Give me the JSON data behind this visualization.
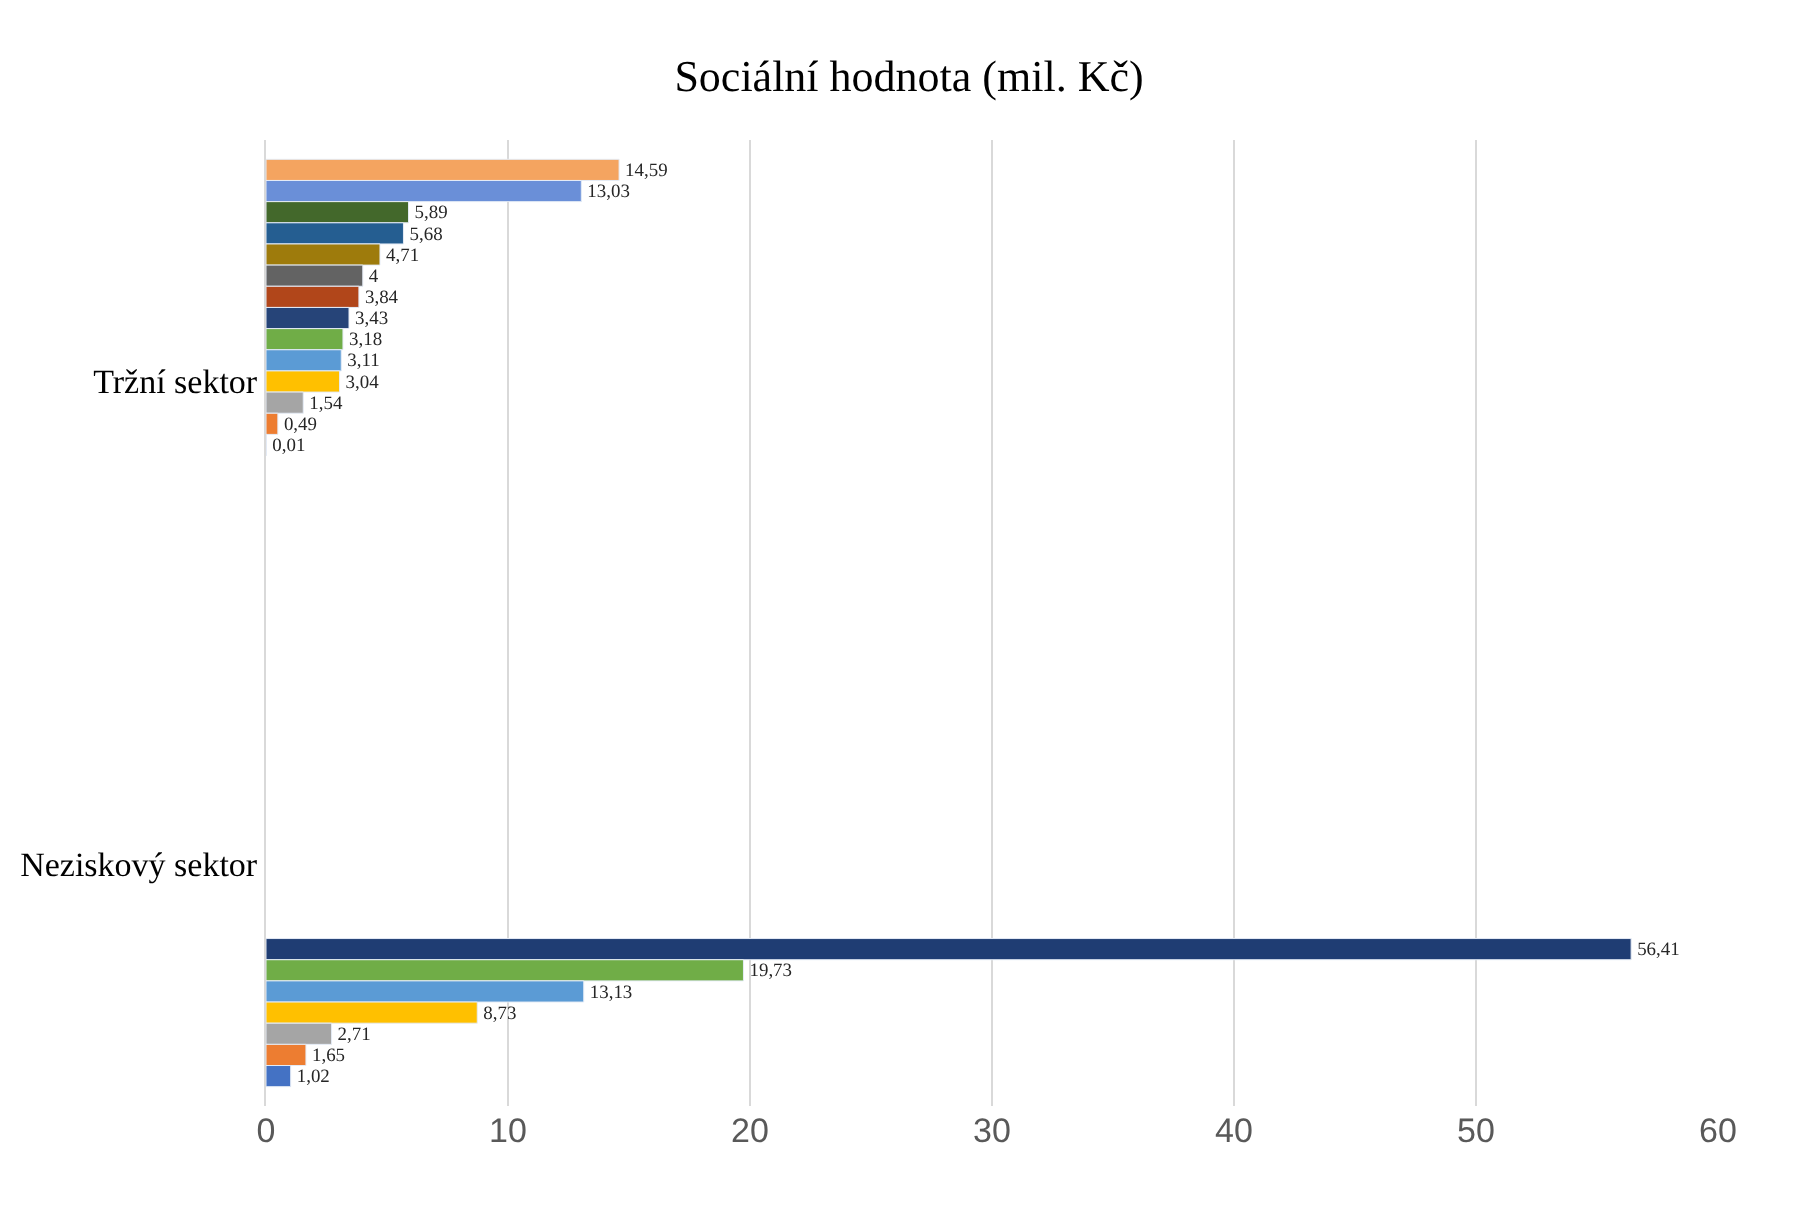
{
  "chart_data": {
    "type": "bar",
    "orientation": "horizontal",
    "title": "Sociální hodnota (mil. Kč)",
    "categories": [
      "Tržní sektor",
      "Neziskový sektor"
    ],
    "series": [
      {
        "color": "#f4a460",
        "values": [
          14.59,
          null
        ],
        "value_labels": [
          "14,59",
          null
        ]
      },
      {
        "color": "#6a8fd8",
        "values": [
          13.03,
          null
        ],
        "value_labels": [
          "13,03",
          null
        ]
      },
      {
        "color": "#43682b",
        "values": [
          5.89,
          null
        ],
        "value_labels": [
          "5,89",
          null
        ]
      },
      {
        "color": "#255e91",
        "values": [
          5.68,
          null
        ],
        "value_labels": [
          "5,68",
          null
        ]
      },
      {
        "color": "#9e7b0c",
        "values": [
          4.71,
          null
        ],
        "value_labels": [
          "4,71",
          null
        ]
      },
      {
        "color": "#636363",
        "values": [
          4,
          null
        ],
        "value_labels": [
          "4",
          null
        ]
      },
      {
        "color": "#b1461a",
        "values": [
          3.84,
          null
        ],
        "value_labels": [
          "3,84",
          null
        ]
      },
      {
        "color": "#264478",
        "values": [
          3.43,
          null
        ],
        "value_labels": [
          "3,43",
          null
        ]
      },
      {
        "color": "#70ad47",
        "values": [
          3.18,
          null
        ],
        "value_labels": [
          "3,18",
          null
        ]
      },
      {
        "color": "#5b9bd5",
        "values": [
          3.11,
          null
        ],
        "value_labels": [
          "3,11",
          null
        ]
      },
      {
        "color": "#ffc000",
        "values": [
          3.04,
          null
        ],
        "value_labels": [
          "3,04",
          null
        ]
      },
      {
        "color": "#a5a5a5",
        "values": [
          1.54,
          null
        ],
        "value_labels": [
          "1,54",
          null
        ]
      },
      {
        "color": "#ed7d31",
        "values": [
          0.49,
          null
        ],
        "value_labels": [
          "0,49",
          null
        ]
      },
      {
        "color": "#4472c4",
        "values": [
          0.01,
          null
        ],
        "value_labels": [
          "0,01",
          null
        ]
      },
      {
        "color": "#1f3d73",
        "values": [
          null,
          56.41
        ],
        "value_labels": [
          null,
          "56,41"
        ]
      },
      {
        "color": "#70ad47",
        "values": [
          null,
          19.73
        ],
        "value_labels": [
          null,
          "19,73"
        ]
      },
      {
        "color": "#5b9bd5",
        "values": [
          null,
          13.13
        ],
        "value_labels": [
          null,
          "13,13"
        ]
      },
      {
        "color": "#ffc000",
        "values": [
          null,
          8.73
        ],
        "value_labels": [
          null,
          "8,73"
        ]
      },
      {
        "color": "#a5a5a5",
        "values": [
          null,
          2.71
        ],
        "value_labels": [
          null,
          "2,71"
        ]
      },
      {
        "color": "#ed7d31",
        "values": [
          null,
          1.65
        ],
        "value_labels": [
          null,
          "1,65"
        ]
      },
      {
        "color": "#4472c4",
        "values": [
          null,
          1.02
        ],
        "value_labels": [
          null,
          "1,02"
        ]
      }
    ],
    "xlim": [
      0,
      60
    ],
    "xticks": [
      0,
      10,
      20,
      30,
      40,
      50,
      60
    ],
    "grid": "x",
    "legend": false
  }
}
